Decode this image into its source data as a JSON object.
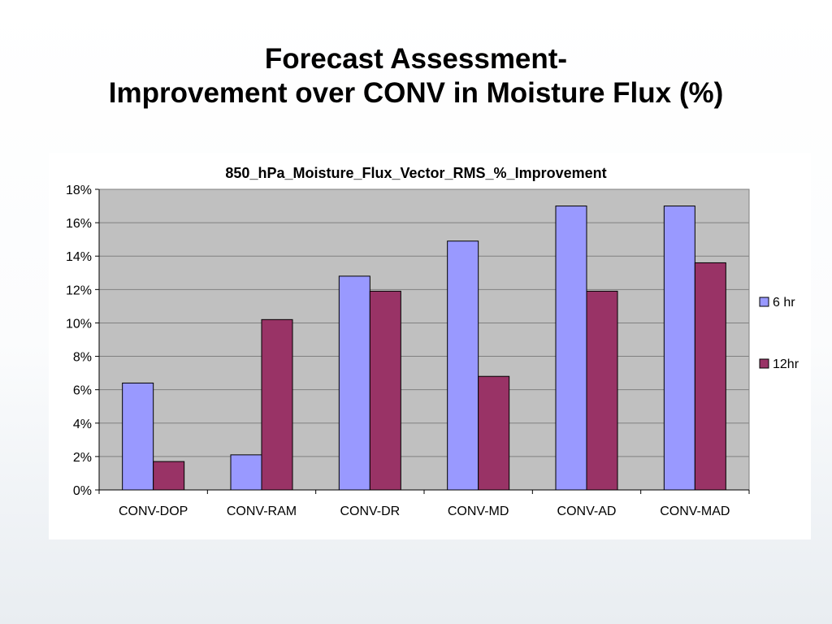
{
  "slide": {
    "title_line1": "Forecast Assessment-",
    "title_line2": "Improvement over CONV in Moisture Flux (%)"
  },
  "chart_data": {
    "type": "bar",
    "title": "850_hPa_Moisture_Flux_Vector_RMS_%_Improvement",
    "categories": [
      "CONV-DOP",
      "CONV-RAM",
      "CONV-DR",
      "CONV-MD",
      "CONV-AD",
      "CONV-MAD"
    ],
    "series": [
      {
        "name": "6 hr",
        "values": [
          6.4,
          2.1,
          12.8,
          14.9,
          17.0,
          17.0
        ],
        "color": "#9999ff"
      },
      {
        "name": "12hr",
        "values": [
          1.7,
          10.2,
          11.9,
          6.8,
          11.9,
          13.6
        ],
        "color": "#993366"
      }
    ],
    "ylim": [
      0,
      18
    ],
    "yticks": [
      0,
      2,
      4,
      6,
      8,
      10,
      12,
      14,
      16,
      18
    ],
    "ytick_labels": [
      "0%",
      "2%",
      "4%",
      "6%",
      "8%",
      "10%",
      "12%",
      "14%",
      "16%",
      "18%"
    ],
    "xlabel": "",
    "ylabel": "",
    "grid": true,
    "legend_position": "right",
    "colors": {
      "plot_background": "#c0c0c0",
      "gridline": "#808080",
      "bar_outline": "#000000"
    }
  }
}
